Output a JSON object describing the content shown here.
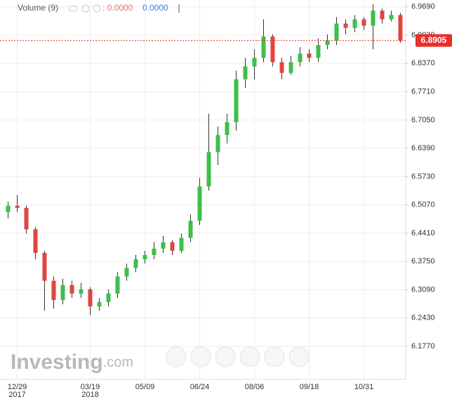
{
  "chart_data": {
    "type": "candlestick",
    "indicator": {
      "name": "Volume (9)",
      "value_a": ": 0.0000",
      "value_b": "0.0000"
    },
    "watermark": "Investing",
    "watermark_suffix": ".com",
    "categories": [
      null,
      "12/29\n2017",
      null,
      null,
      null,
      null,
      null,
      null,
      null,
      "03/19\n2018",
      null,
      null,
      null,
      null,
      null,
      "05/09",
      null,
      null,
      null,
      null,
      null,
      "06/24",
      null,
      null,
      null,
      null,
      null,
      "08/06",
      null,
      null,
      null,
      null,
      null,
      "09/18",
      null,
      null,
      null,
      null,
      null,
      "10/31",
      null,
      null,
      null,
      null
    ],
    "open": [
      6.49,
      6.505,
      6.5,
      6.45,
      6.395,
      6.33,
      6.285,
      6.32,
      6.3,
      6.31,
      6.27,
      6.28,
      6.3,
      6.34,
      6.36,
      6.38,
      6.39,
      6.405,
      6.42,
      6.4,
      6.43,
      6.47,
      6.55,
      6.63,
      6.67,
      6.7,
      6.8,
      6.83,
      6.85,
      6.9,
      6.84,
      6.815,
      6.84,
      6.86,
      6.85,
      6.88,
      6.89,
      6.93,
      6.92,
      6.94,
      6.925,
      6.96,
      6.94,
      6.95
    ],
    "high": [
      6.515,
      6.53,
      6.505,
      6.455,
      6.4,
      6.34,
      6.335,
      6.33,
      6.325,
      6.315,
      6.29,
      6.31,
      6.35,
      6.37,
      6.39,
      6.4,
      6.42,
      6.435,
      6.425,
      6.44,
      6.485,
      6.57,
      6.72,
      6.69,
      6.72,
      6.82,
      6.85,
      6.87,
      6.94,
      6.905,
      6.85,
      6.855,
      6.875,
      6.87,
      6.895,
      6.905,
      6.945,
      6.94,
      6.95,
      6.945,
      6.975,
      6.965,
      6.96,
      6.955
    ],
    "low": [
      6.475,
      6.49,
      6.44,
      6.38,
      6.26,
      6.265,
      6.275,
      6.29,
      6.29,
      6.25,
      6.26,
      6.27,
      6.29,
      6.33,
      6.35,
      6.37,
      6.38,
      6.395,
      6.39,
      6.395,
      6.42,
      6.46,
      6.54,
      6.6,
      6.65,
      6.68,
      6.78,
      6.8,
      6.84,
      6.83,
      6.8,
      6.81,
      6.83,
      6.84,
      6.84,
      6.87,
      6.88,
      6.905,
      6.91,
      6.915,
      6.87,
      6.93,
      6.935,
      6.885
    ],
    "close": [
      6.505,
      6.5,
      6.45,
      6.395,
      6.33,
      6.285,
      6.32,
      6.3,
      6.31,
      6.27,
      6.28,
      6.3,
      6.34,
      6.36,
      6.38,
      6.39,
      6.405,
      6.42,
      6.4,
      6.43,
      6.47,
      6.55,
      6.63,
      6.67,
      6.7,
      6.8,
      6.83,
      6.85,
      6.9,
      6.84,
      6.815,
      6.84,
      6.86,
      6.85,
      6.88,
      6.89,
      6.93,
      6.92,
      6.94,
      6.925,
      6.96,
      6.94,
      6.95,
      6.8905
    ],
    "up_color": "#3dbf4a",
    "down_color": "#e0453f",
    "wick_color": "#333333",
    "last_price": 6.8905,
    "last_price_color": "#e8302a",
    "ylim": [
      6.1,
      6.985
    ],
    "yticks": [
      {
        "value": 6.969,
        "label": "6.9690"
      },
      {
        "value": 6.903,
        "label": "6.9030"
      },
      {
        "value": 6.837,
        "label": "6.8370"
      },
      {
        "value": 6.771,
        "label": "6.7710"
      },
      {
        "value": 6.705,
        "label": "6.7050"
      },
      {
        "value": 6.639,
        "label": "6.6390"
      },
      {
        "value": 6.573,
        "label": "6.5730"
      },
      {
        "value": 6.507,
        "label": "6.5070"
      },
      {
        "value": 6.441,
        "label": "6.4410"
      },
      {
        "value": 6.375,
        "label": "6.3750"
      },
      {
        "value": 6.309,
        "label": "6.3090"
      },
      {
        "value": 6.243,
        "label": "6.2430"
      },
      {
        "value": 6.177,
        "label": "6.1770"
      }
    ],
    "grid": true
  }
}
